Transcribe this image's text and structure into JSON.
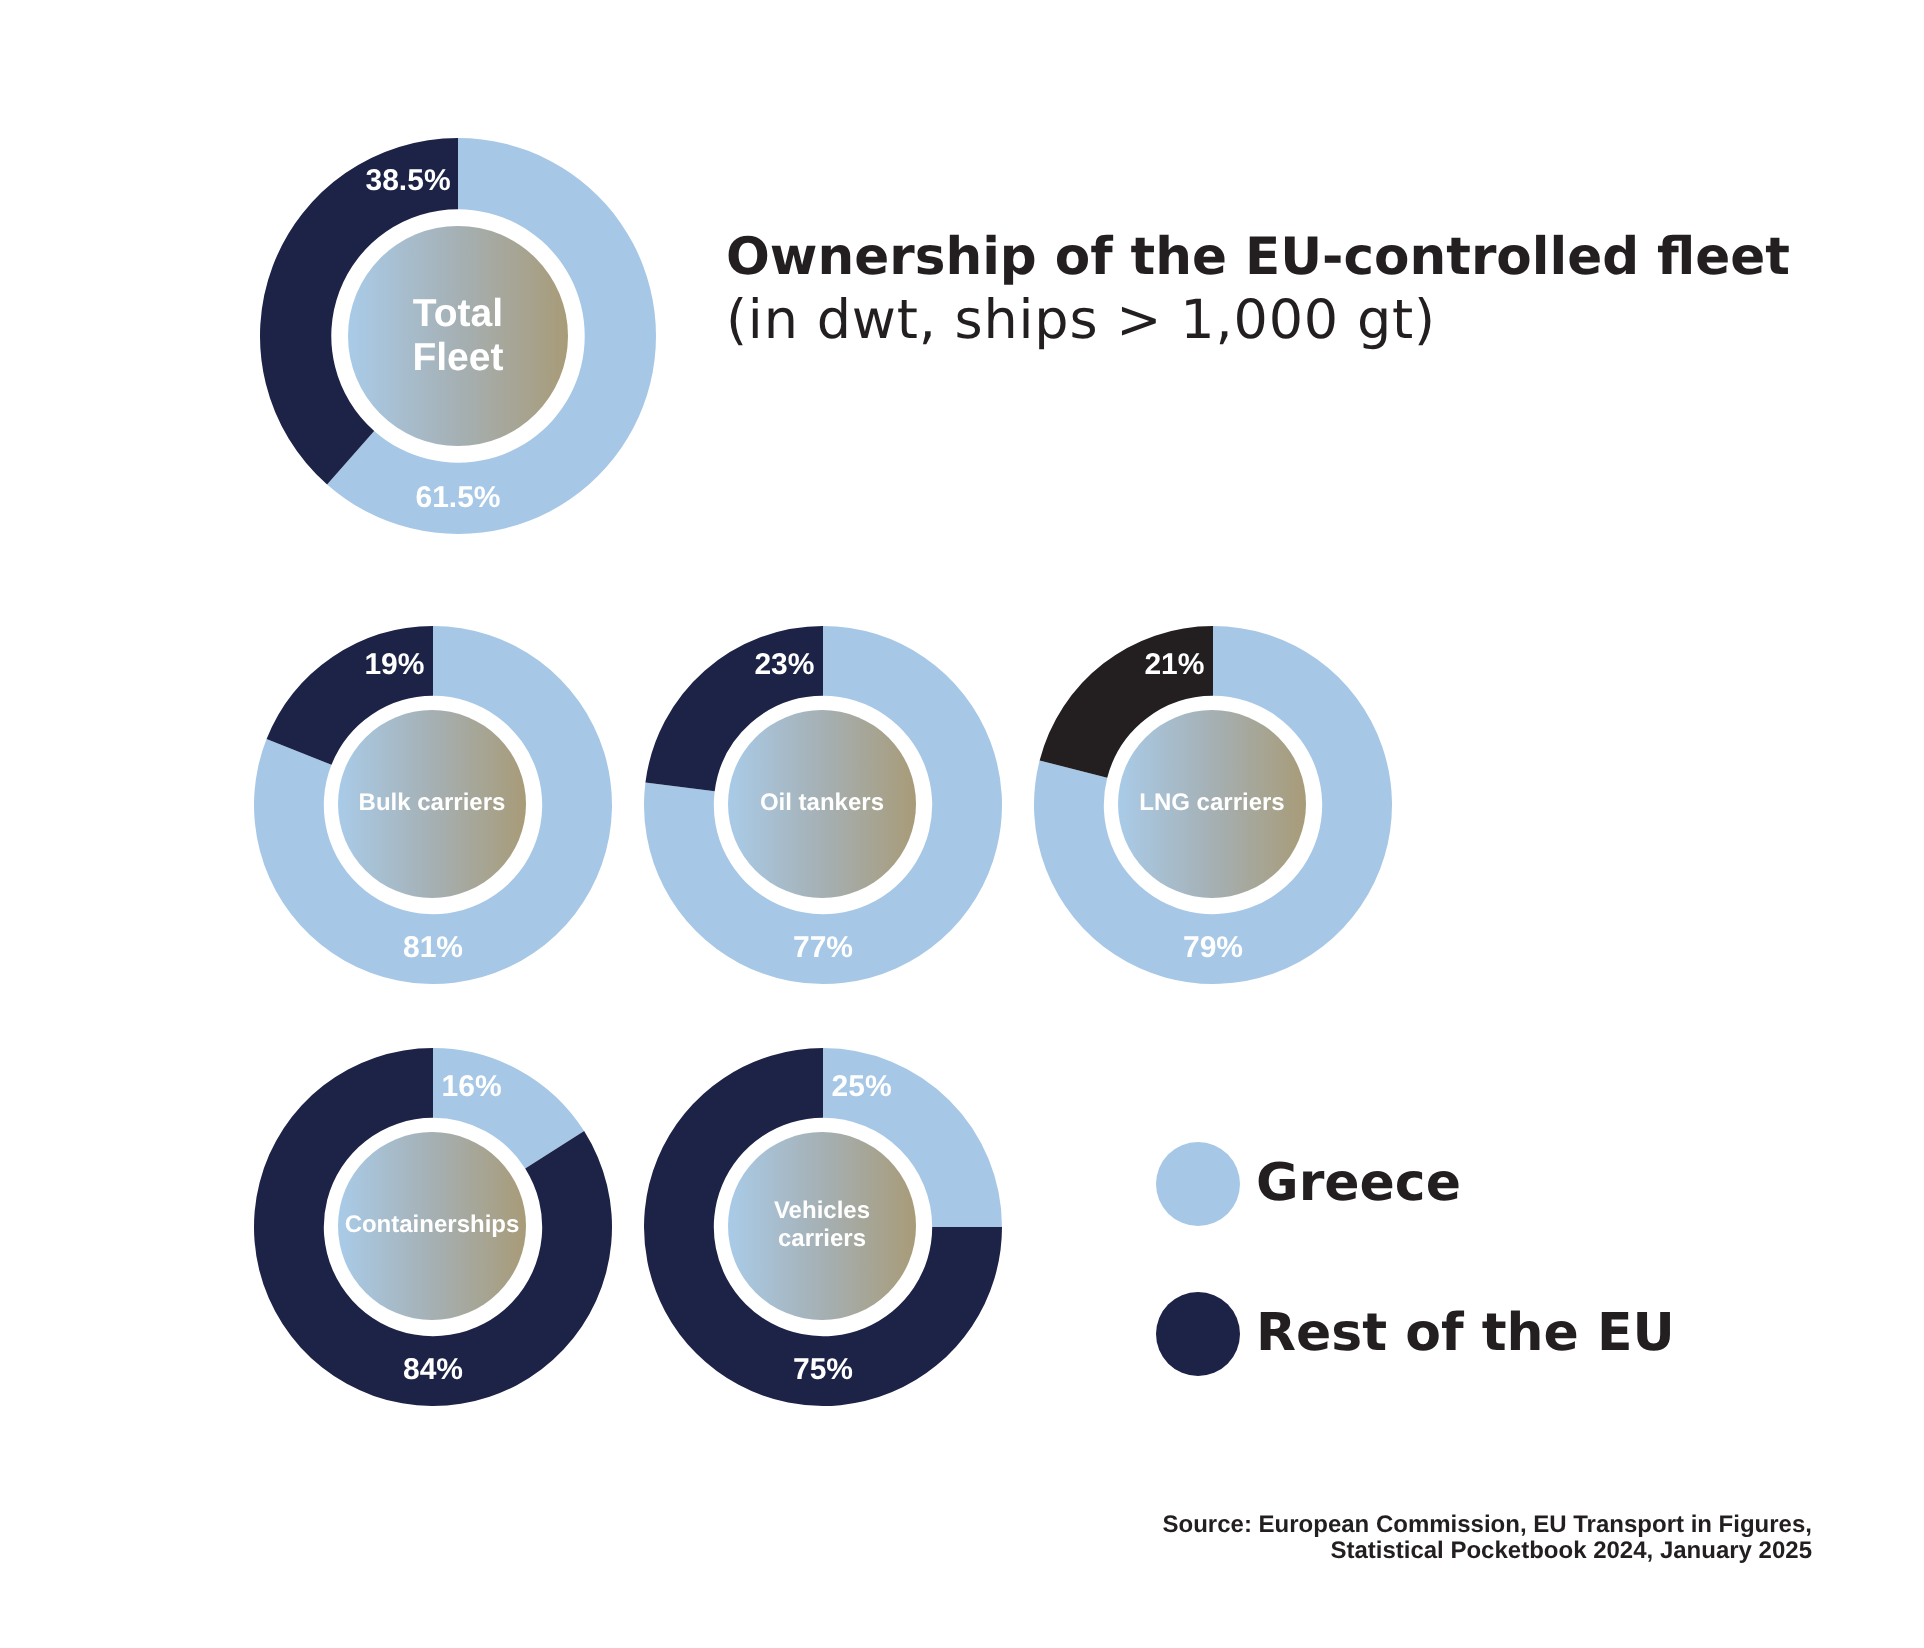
{
  "chart_data": [
    {
      "type": "donut",
      "title": "Total Fleet",
      "categories": [
        null,
        null
      ],
      "values": [
        61.5,
        38.5
      ],
      "colors": [
        "#a6c8e6",
        "#1d2247"
      ],
      "value_labels": [
        "61.5%",
        "38.5%"
      ]
    },
    {
      "type": "other",
      "title": "Ownership of the EU-controlled fleet",
      "subtitle": "(in dwt, ships > 1,000 gt)"
    },
    {
      "type": "donut",
      "title": "Bulk carriers",
      "categories": [
        null,
        null
      ],
      "values": [
        81,
        19
      ],
      "colors": [
        "#a6c8e6",
        "#1d2247"
      ],
      "value_labels": [
        "81%",
        "19%"
      ]
    },
    {
      "type": "donut",
      "title": "Oil tankers",
      "categories": [
        null,
        null
      ],
      "values": [
        77,
        23
      ],
      "colors": [
        "#a6c8e6",
        "#1d2247"
      ],
      "value_labels": [
        "77%",
        "23%"
      ]
    },
    {
      "type": "donut",
      "title": "LNG carriers",
      "categories": [
        null,
        null
      ],
      "values": [
        79,
        21
      ],
      "colors": [
        "#a6c8e6",
        "#231f20"
      ],
      "value_labels": [
        "79%",
        "21%"
      ]
    },
    {
      "type": "donut",
      "title": "Containerships",
      "categories": [
        null,
        null
      ],
      "values": [
        16,
        84
      ],
      "colors": [
        "#a6c8e6",
        "#1d2247"
      ],
      "value_labels": [
        "16%",
        "84%"
      ]
    },
    {
      "type": "donut",
      "title": "Vehicles carriers",
      "categories": [
        "Greece",
        "Rest of the EU"
      ],
      "values": [
        25,
        75
      ],
      "colors": [
        "#a6c8e6",
        "#1d2247"
      ],
      "value_labels": [
        "25%",
        "75%"
      ],
      "legend": "right"
    },
    {
      "type": "other",
      "annotations": [
        "Source: European Commission, EU Transport in Figures, Statistical Pocketbook 2024, January 2025"
      ]
    }
  ]
}
